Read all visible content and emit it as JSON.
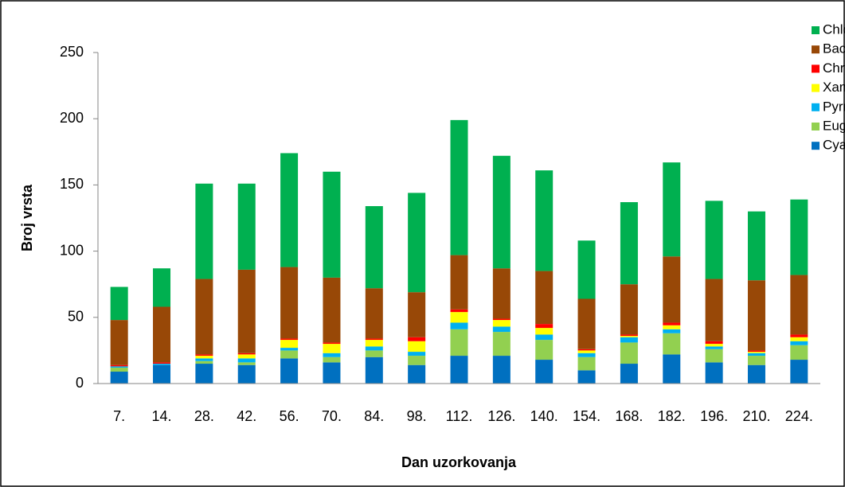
{
  "chart_data": {
    "type": "stacked-bar",
    "x_label": "Dan uzorkovanja",
    "y_label": "Broj vrsta",
    "categories": [
      "7.",
      "14.",
      "28.",
      "42.",
      "56.",
      "70.",
      "84.",
      "98.",
      "112.",
      "126.",
      "140.",
      "154.",
      "168.",
      "182.",
      "196.",
      "210.",
      "224."
    ],
    "series": [
      {
        "name": "Cyanobacteria",
        "color": "#0070c0",
        "values": [
          9,
          14,
          15,
          14,
          19,
          16,
          20,
          14,
          21,
          21,
          18,
          10,
          15,
          22,
          16,
          14,
          18
        ]
      },
      {
        "name": "Euglenophyta",
        "color": "#92d050",
        "values": [
          3,
          0,
          2,
          2,
          6,
          4,
          5,
          7,
          20,
          18,
          15,
          10,
          16,
          16,
          10,
          7,
          11
        ]
      },
      {
        "name": "Pyrrophyta",
        "color": "#00b0f0",
        "values": [
          1,
          1,
          2,
          3,
          2,
          3,
          3,
          3,
          5,
          4,
          4,
          3,
          4,
          3,
          2,
          2,
          3
        ]
      },
      {
        "name": "Xanthophyceae",
        "color": "#ffff00",
        "values": [
          0,
          0,
          2,
          3,
          6,
          7,
          5,
          8,
          8,
          5,
          5,
          2,
          1,
          3,
          2,
          1,
          3
        ]
      },
      {
        "name": "Chrysophyceae",
        "color": "#ff0000",
        "values": [
          1,
          1,
          1,
          1,
          1,
          1,
          1,
          3,
          2,
          1,
          3,
          1,
          1,
          2,
          2,
          1,
          2
        ]
      },
      {
        "name": "Bacillariophyceae",
        "color": "#984807",
        "values": [
          34,
          42,
          57,
          63,
          54,
          49,
          38,
          34,
          41,
          38,
          40,
          38,
          38,
          50,
          47,
          53,
          45
        ]
      },
      {
        "name": "Chlorophyta",
        "color": "#00b050",
        "values": [
          25,
          29,
          72,
          65,
          86,
          80,
          62,
          75,
          102,
          85,
          76,
          44,
          62,
          71,
          59,
          52,
          57
        ]
      }
    ],
    "ylim": [
      0,
      250
    ],
    "yticks": [
      0,
      50,
      100,
      150,
      200,
      250
    ],
    "grid": false,
    "legend": "top-right"
  }
}
